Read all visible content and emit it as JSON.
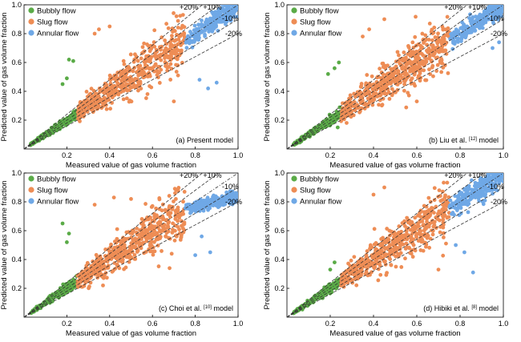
{
  "colors": {
    "bubbly": "#5aab47",
    "slug": "#ee8d55",
    "annular": "#6fa8e6",
    "axis": "#000000",
    "refline": "#333333"
  },
  "chart_data": [
    {
      "type": "scatter",
      "caption": "(a) Present model",
      "caption_ref": "",
      "caption_tail": "",
      "xlabel": "Measured value of gas volume fraction",
      "ylabel": "Predicted value of gas volume fraction",
      "xlim": [
        0,
        1
      ],
      "ylim": [
        0,
        1
      ],
      "x_ticks": [
        "0.2",
        "0.4",
        "0.6",
        "0.8",
        "1.0"
      ],
      "y_ticks": [
        "0.2",
        "0.4",
        "0.6",
        "0.8",
        "1.0"
      ],
      "legend": [
        "Bubbly flow",
        "Slug flow",
        "Annular flow"
      ],
      "legend_position": "top-left",
      "reference_lines": [
        {
          "label": "+20%",
          "factor": 1.2
        },
        {
          "label": "+10%",
          "factor": 1.1
        },
        {
          "label": "-10%",
          "factor": 0.9
        },
        {
          "label": "-20%",
          "factor": 0.8
        }
      ],
      "series": [
        {
          "name": "Bubbly flow",
          "x_range": [
            0.03,
            0.25
          ],
          "spread": 0.09,
          "outliers": [
            [
              0.21,
              0.62
            ],
            [
              0.23,
              0.61
            ],
            [
              0.18,
              0.45
            ],
            [
              0.2,
              0.49
            ]
          ]
        },
        {
          "name": "Slug flow",
          "x_range": [
            0.25,
            0.75
          ],
          "spread": 0.14,
          "outliers": [
            [
              0.33,
              0.8
            ],
            [
              0.35,
              0.83
            ],
            [
              0.4,
              0.85
            ],
            [
              0.7,
              0.33
            ]
          ]
        },
        {
          "name": "Annular flow",
          "x_range": [
            0.75,
            1.0
          ],
          "spread": 0.04,
          "outliers": [
            [
              0.82,
              0.48
            ],
            [
              0.86,
              0.42
            ],
            [
              0.9,
              0.46
            ]
          ]
        }
      ]
    },
    {
      "type": "scatter",
      "caption": "(b) Liu et al. ",
      "caption_ref": "[12]",
      "caption_tail": " model",
      "xlabel": "Measured value of gas volume fraction",
      "ylabel": "Predicted value of gas volume fraction",
      "xlim": [
        0,
        1
      ],
      "ylim": [
        0,
        1
      ],
      "x_ticks": [
        "0.2",
        "0.4",
        "0.6",
        "0.8",
        "1.0"
      ],
      "y_ticks": [
        "0.2",
        "0.4",
        "0.6",
        "0.8",
        "1.0"
      ],
      "legend": [
        "Bubbly flow",
        "Slug flow",
        "Annular flow"
      ],
      "legend_position": "top-left",
      "reference_lines": [
        {
          "label": "+20%",
          "factor": 1.2
        },
        {
          "label": "+10%",
          "factor": 1.1
        },
        {
          "label": "-10%",
          "factor": 0.9
        },
        {
          "label": "-20%",
          "factor": 0.8
        }
      ],
      "series": [
        {
          "name": "Bubbly flow",
          "x_range": [
            0.03,
            0.25
          ],
          "spread": 0.1,
          "outliers": [
            [
              0.22,
              0.56
            ],
            [
              0.19,
              0.52
            ],
            [
              0.24,
              0.6
            ]
          ]
        },
        {
          "name": "Slug flow",
          "x_range": [
            0.25,
            0.75
          ],
          "spread": 0.15,
          "outliers": [
            [
              0.35,
              0.78
            ],
            [
              0.38,
              0.83
            ],
            [
              0.45,
              0.9
            ],
            [
              0.6,
              0.33
            ]
          ]
        },
        {
          "name": "Annular flow",
          "x_range": [
            0.75,
            1.0
          ],
          "spread": 0.04,
          "outliers": [
            [
              0.95,
              0.7
            ],
            [
              0.98,
              0.74
            ]
          ]
        }
      ]
    },
    {
      "type": "scatter",
      "caption": "(c) Choi et al. ",
      "caption_ref": "[10]",
      "caption_tail": " model",
      "xlabel": "Measured value of gas volume fraction",
      "ylabel": "Predicted value of gas volume fraction",
      "xlim": [
        0,
        1
      ],
      "ylim": [
        0,
        1
      ],
      "x_ticks": [
        "0.2",
        "0.4",
        "0.6",
        "0.8",
        "1.0"
      ],
      "y_ticks": [
        "0.2",
        "0.4",
        "0.6",
        "0.8",
        "1.0"
      ],
      "legend": [
        "Bubbly flow",
        "Slug flow",
        "Annular flow"
      ],
      "legend_position": "top-left",
      "reference_lines": [
        {
          "label": "+20%",
          "factor": 1.2
        },
        {
          "label": "+10%",
          "factor": 1.1
        },
        {
          "label": "-10%",
          "factor": 0.9
        },
        {
          "label": "-20%",
          "factor": 0.8
        }
      ],
      "series": [
        {
          "name": "Bubbly flow",
          "x_range": [
            0.03,
            0.25
          ],
          "spread": 0.1,
          "outliers": [
            [
              0.18,
              0.65
            ],
            [
              0.21,
              0.58
            ],
            [
              0.2,
              0.52
            ]
          ]
        },
        {
          "name": "Slug flow",
          "x_range": [
            0.25,
            0.75
          ],
          "spread": 0.15,
          "outliers": [
            [
              0.33,
              0.78
            ],
            [
              0.42,
              0.83
            ],
            [
              0.5,
              0.82
            ],
            [
              0.68,
              0.34
            ]
          ]
        },
        {
          "name": "Annular flow",
          "x_range": [
            0.75,
            1.0
          ],
          "spread": 0.03,
          "curve": "flat",
          "outliers": [
            [
              0.83,
              0.56
            ],
            [
              0.87,
              0.45
            ],
            [
              0.8,
              0.43
            ]
          ]
        }
      ]
    },
    {
      "type": "scatter",
      "caption": "(d) Hibiki et al. ",
      "caption_ref": "[8]",
      "caption_tail": " model",
      "xlabel": "Measured value of gas volume fraction",
      "ylabel": "Predicted value of gas volume fraction",
      "xlim": [
        0,
        1
      ],
      "ylim": [
        0,
        1
      ],
      "x_ticks": [
        "0.2",
        "0.4",
        "0.6",
        "0.8",
        "1.0"
      ],
      "y_ticks": [
        "0.2",
        "0.4",
        "0.6",
        "0.8",
        "1.0"
      ],
      "legend": [
        "Bubbly flow",
        "Slug flow",
        "Annular flow"
      ],
      "legend_position": "top-left",
      "reference_lines": [
        {
          "label": "+20%",
          "factor": 1.2
        },
        {
          "label": "+10%",
          "factor": 1.1
        },
        {
          "label": "-10%",
          "factor": 0.9
        },
        {
          "label": "-20%",
          "factor": 0.8
        }
      ],
      "series": [
        {
          "name": "Bubbly flow",
          "x_range": [
            0.03,
            0.25
          ],
          "spread": 0.08,
          "outliers": [
            [
              0.22,
              0.38
            ],
            [
              0.2,
              0.33
            ]
          ]
        },
        {
          "name": "Slug flow",
          "x_range": [
            0.25,
            0.75
          ],
          "spread": 0.15,
          "outliers": [
            [
              0.4,
              0.85
            ],
            [
              0.45,
              0.9
            ],
            [
              0.7,
              0.33
            ]
          ]
        },
        {
          "name": "Annular flow",
          "x_range": [
            0.75,
            1.0
          ],
          "spread": 0.05,
          "outliers": [
            [
              0.86,
              0.31
            ],
            [
              0.78,
              0.5
            ],
            [
              0.82,
              0.45
            ]
          ]
        }
      ]
    }
  ]
}
